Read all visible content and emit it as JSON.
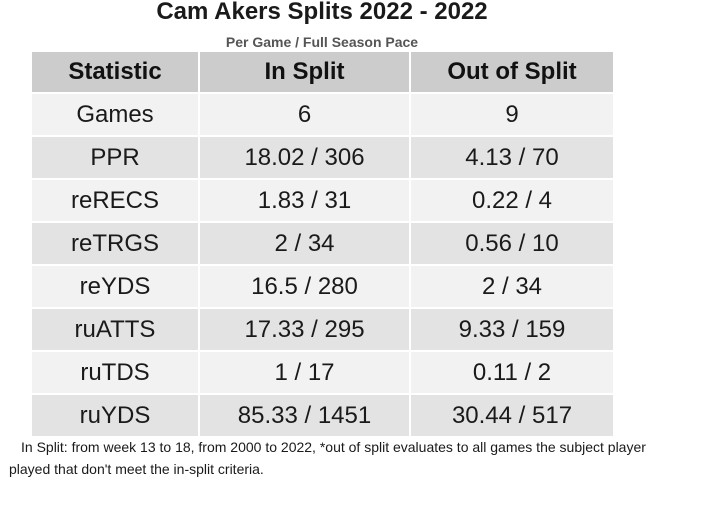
{
  "chart_data": {
    "type": "table",
    "title": "Cam Akers Splits 2022 - 2022",
    "subtitle": "Per Game / Full Season Pace",
    "columns": [
      "Statistic",
      "In Split",
      "Out of Split"
    ],
    "rows": [
      [
        "Games",
        "6",
        "9"
      ],
      [
        "PPR",
        "18.02 / 306",
        "4.13 / 70"
      ],
      [
        "reRECS",
        "1.83 / 31",
        "0.22 / 4"
      ],
      [
        "reTRGS",
        "2 / 34",
        "0.56 / 10"
      ],
      [
        "reYDS",
        "16.5 / 280",
        "2 / 34"
      ],
      [
        "ruATTS",
        "17.33 / 295",
        "9.33 / 159"
      ],
      [
        "ruTDS",
        "1 / 17",
        "0.11 / 2"
      ],
      [
        "ruYDS",
        "85.33 / 1451",
        "30.44 / 517"
      ]
    ],
    "footnote": "In Split: from week 13 to 18, from 2000 to 2022,  *out of split evaluates to all games the subject player played that don't meet the in-split criteria."
  },
  "colors": {
    "header_bg": "#cccccc",
    "row_light": "#f2f2f2",
    "row_dark": "#e3e3e3"
  }
}
